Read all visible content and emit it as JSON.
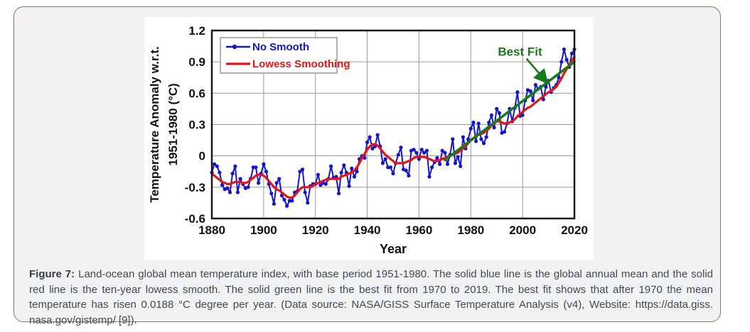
{
  "figure": {
    "caption_label": "Figure 7:",
    "caption_text": " Land-ocean global mean temperature index, with base period 1951-1980. The solid blue line is the global annual mean and the solid red line is the ten-year lowess smooth. The solid green line is the best fit from 1970 to 2019. The best fit shows that after 1970 the mean temperature has risen 0.0188 °C degree per year. (Data source: NASA/GISS Surface Temperature Analysis (v4), Website: https://data.giss. nasa.gov/gistemp/ [9]).",
    "caption_color": "#3c4a54",
    "card_border_color": "#9b6c58",
    "card_bg": "#f2f2f3"
  },
  "chart_data": {
    "type": "line",
    "title": "",
    "xlabel": "Year",
    "ylabel_lines": [
      "Temperature Anomaly w.r.t.",
      "1951-1980 (°C)"
    ],
    "xlim": [
      1880,
      2020
    ],
    "ylim": [
      -0.6,
      1.2
    ],
    "xticks": [
      1880,
      1900,
      1920,
      1940,
      1960,
      1980,
      2000,
      2020
    ],
    "yticks": [
      -0.6,
      -0.3,
      0,
      0.3,
      0.6,
      0.9,
      1.2
    ],
    "ytick_labels": [
      "-0.6",
      "-0.3",
      "0",
      "0.3",
      "0.6",
      "0.9",
      "1.2"
    ],
    "grid": true,
    "colors": {
      "grid": "#9a9a9a",
      "frame": "#1a1a1a",
      "blue": "#1414cc",
      "red": "#e81414",
      "green": "#1a7a1a",
      "tick_text": "#111111"
    },
    "legend": {
      "position": "top-left",
      "entries": [
        {
          "label": "No Smooth",
          "color": "#1414cc",
          "marker": "line-dot"
        },
        {
          "label": "Lowess Smoothing",
          "color": "#e81414",
          "marker": "line"
        }
      ]
    },
    "annotation": {
      "label": "Best Fit",
      "color": "#1a7a1a",
      "label_pos": [
        1999,
        1.0
      ],
      "arrow_from": [
        2001.5,
        0.93
      ],
      "arrow_to": [
        2009.5,
        0.7
      ]
    },
    "x_start": 1880,
    "x_step": 1,
    "series": [
      {
        "name": "No Smooth",
        "color": "#1414cc",
        "markers": true,
        "values": [
          -0.16,
          -0.08,
          -0.1,
          -0.16,
          -0.28,
          -0.32,
          -0.31,
          -0.35,
          -0.17,
          -0.1,
          -0.35,
          -0.22,
          -0.27,
          -0.31,
          -0.3,
          -0.22,
          -0.11,
          -0.11,
          -0.26,
          -0.17,
          -0.08,
          -0.15,
          -0.27,
          -0.36,
          -0.46,
          -0.26,
          -0.22,
          -0.38,
          -0.42,
          -0.48,
          -0.43,
          -0.43,
          -0.35,
          -0.34,
          -0.15,
          -0.13,
          -0.35,
          -0.45,
          -0.29,
          -0.27,
          -0.27,
          -0.18,
          -0.28,
          -0.26,
          -0.27,
          -0.22,
          -0.1,
          -0.21,
          -0.2,
          -0.36,
          -0.16,
          -0.09,
          -0.16,
          -0.29,
          -0.12,
          -0.2,
          -0.15,
          -0.03,
          0.0,
          -0.02,
          0.13,
          0.18,
          0.07,
          0.09,
          0.2,
          0.09,
          -0.07,
          -0.03,
          -0.11,
          -0.11,
          -0.17,
          -0.07,
          0.01,
          0.08,
          -0.13,
          -0.14,
          -0.19,
          0.05,
          0.06,
          0.03,
          -0.03,
          0.06,
          0.03,
          0.05,
          -0.2,
          -0.11,
          -0.06,
          -0.02,
          -0.08,
          0.05,
          0.03,
          -0.08,
          0.01,
          0.16,
          -0.07,
          -0.01,
          -0.1,
          0.18,
          0.07,
          0.16,
          0.26,
          0.32,
          0.14,
          0.31,
          0.16,
          0.12,
          0.18,
          0.32,
          0.39,
          0.27,
          0.45,
          0.41,
          0.22,
          0.23,
          0.31,
          0.45,
          0.33,
          0.46,
          0.61,
          0.38,
          0.39,
          0.53,
          0.63,
          0.62,
          0.53,
          0.68,
          0.64,
          0.66,
          0.54,
          0.66,
          0.72,
          0.61,
          0.65,
          0.68,
          0.75,
          0.9,
          1.02,
          0.92,
          0.85,
          0.98,
          1.02
        ]
      },
      {
        "name": "Lowess Smoothing",
        "color": "#e81414",
        "markers": false,
        "values": [
          -0.17,
          -0.19,
          -0.21,
          -0.23,
          -0.25,
          -0.26,
          -0.27,
          -0.27,
          -0.26,
          -0.25,
          -0.25,
          -0.25,
          -0.26,
          -0.26,
          -0.25,
          -0.23,
          -0.21,
          -0.19,
          -0.18,
          -0.18,
          -0.19,
          -0.21,
          -0.24,
          -0.27,
          -0.3,
          -0.32,
          -0.33,
          -0.35,
          -0.37,
          -0.39,
          -0.4,
          -0.4,
          -0.38,
          -0.35,
          -0.32,
          -0.3,
          -0.3,
          -0.3,
          -0.3,
          -0.29,
          -0.27,
          -0.26,
          -0.25,
          -0.24,
          -0.23,
          -0.22,
          -0.22,
          -0.22,
          -0.22,
          -0.22,
          -0.2,
          -0.19,
          -0.18,
          -0.17,
          -0.16,
          -0.14,
          -0.11,
          -0.07,
          -0.02,
          0.02,
          0.06,
          0.09,
          0.11,
          0.11,
          0.1,
          0.07,
          0.04,
          0.01,
          -0.01,
          -0.03,
          -0.05,
          -0.07,
          -0.07,
          -0.07,
          -0.07,
          -0.06,
          -0.05,
          -0.04,
          -0.02,
          -0.01,
          -0.01,
          -0.01,
          -0.01,
          -0.02,
          -0.03,
          -0.04,
          -0.05,
          -0.05,
          -0.04,
          -0.03,
          -0.02,
          -0.01,
          0.0,
          0.01,
          0.02,
          0.03,
          0.05,
          0.07,
          0.09,
          0.12,
          0.15,
          0.17,
          0.19,
          0.2,
          0.21,
          0.22,
          0.24,
          0.26,
          0.29,
          0.31,
          0.33,
          0.33,
          0.32,
          0.31,
          0.31,
          0.32,
          0.33,
          0.35,
          0.38,
          0.4,
          0.42,
          0.44,
          0.46,
          0.47,
          0.49,
          0.51,
          0.53,
          0.55,
          0.57,
          0.59,
          0.61,
          0.62,
          0.64,
          0.66,
          0.7,
          0.74,
          0.79,
          0.83,
          0.87,
          0.91,
          0.95
        ]
      }
    ],
    "best_fit": {
      "name": "Best Fit",
      "color": "#1a7a1a",
      "x": [
        1970,
        2020
      ],
      "y": [
        -0.04,
        0.9
      ],
      "slope_per_year": 0.0188
    }
  }
}
